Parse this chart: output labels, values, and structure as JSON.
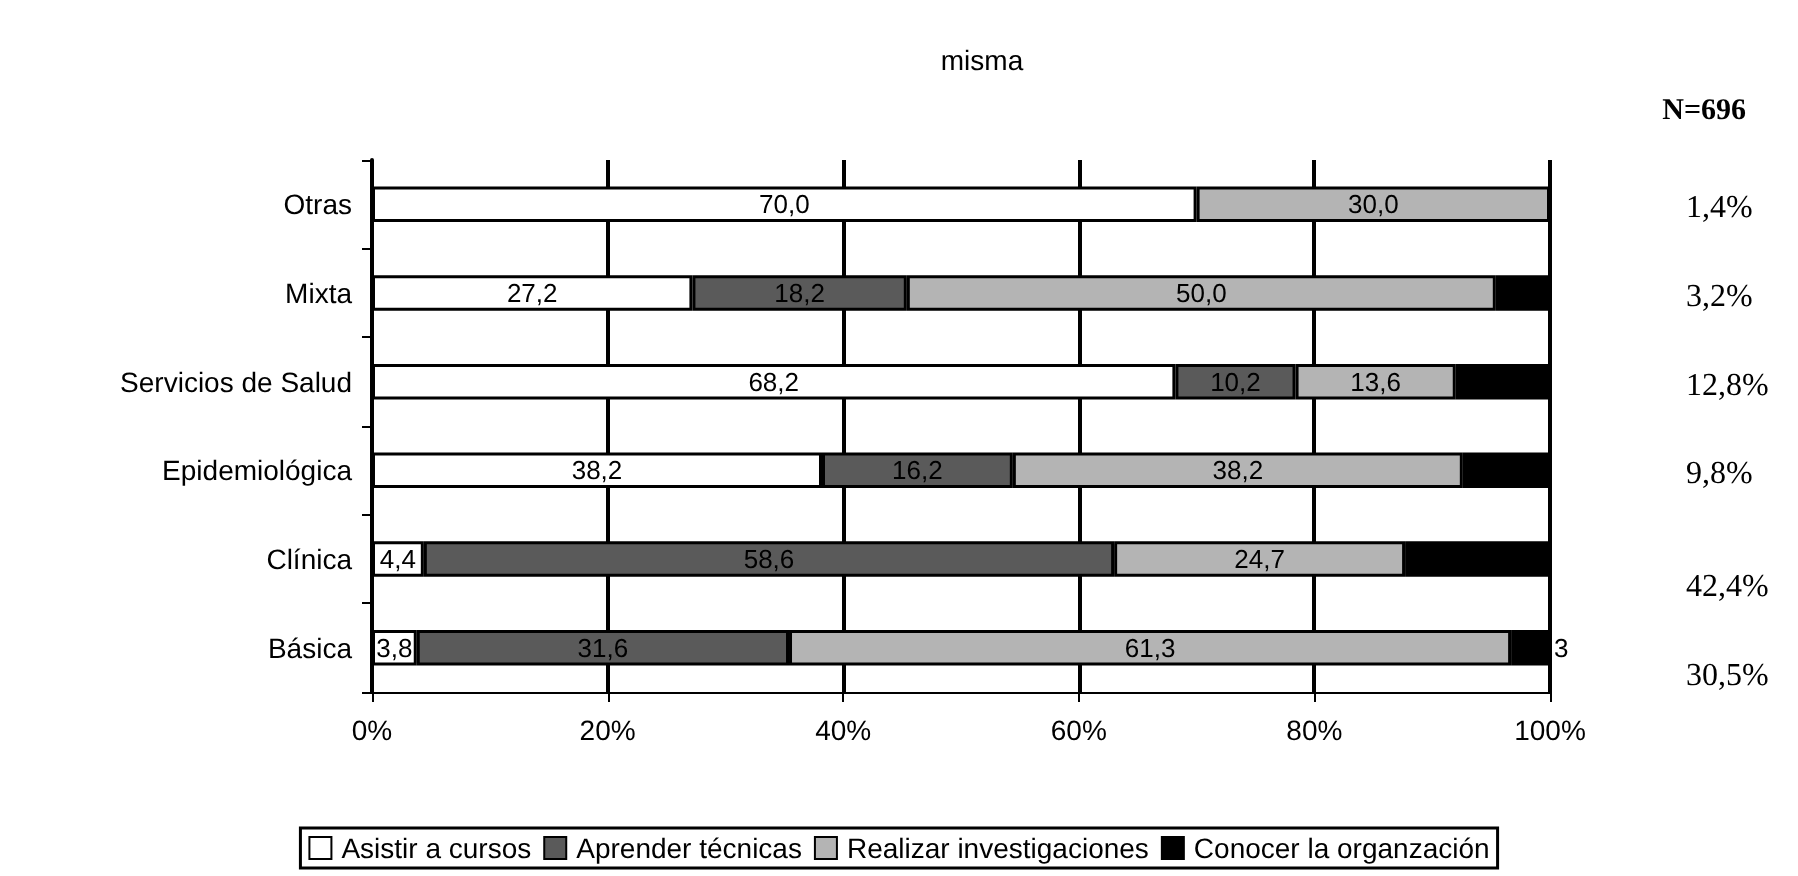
{
  "chart_data": {
    "type": "bar",
    "title": "misma",
    "orientation": "horizontal",
    "stacked": true,
    "categories": [
      "Otras",
      "Mixta",
      "Servicios de Salud",
      "Epidemiológica",
      "Clínica",
      "Básica"
    ],
    "series": [
      {
        "name": "Asistir a cursos",
        "color": "#ffffff",
        "values": [
          70.0,
          27.2,
          68.2,
          38.2,
          4.4,
          3.8
        ],
        "value_labels": [
          "70,0",
          "27,2",
          "68,2",
          "38,2",
          "4,4",
          "3,8"
        ]
      },
      {
        "name": "Aprender técnicas",
        "color": "#5a5a5a",
        "values": [
          null,
          18.2,
          10.2,
          16.2,
          58.6,
          31.6
        ],
        "value_labels": [
          null,
          "18,2",
          "10,2",
          "16,2",
          "58,6",
          "31,6"
        ]
      },
      {
        "name": "Realizar investigaciones",
        "color": "#b4b4b4",
        "values": [
          30.0,
          50.0,
          13.6,
          38.2,
          24.7,
          61.3
        ],
        "value_labels": [
          "30,0",
          "50,0",
          "13,6",
          "38,2",
          "24,7",
          "61,3"
        ]
      },
      {
        "name": "Conocer la organzación",
        "color": "#000000",
        "values": [
          null,
          4.6,
          8.0,
          7.4,
          12.3,
          3.3
        ],
        "value_labels": [
          null,
          null,
          null,
          null,
          null,
          "3"
        ]
      }
    ],
    "xlim": [
      0,
      100
    ],
    "xticks": [
      {
        "value": 0,
        "label": "0%"
      },
      {
        "value": 20,
        "label": "20%"
      },
      {
        "value": 40,
        "label": "40%"
      },
      {
        "value": 60,
        "label": "60%"
      },
      {
        "value": 80,
        "label": "80%"
      },
      {
        "value": 100,
        "label": "100%"
      }
    ],
    "grid": "x",
    "legend": "bottom",
    "annotations": [
      "N=696",
      "1,4%",
      "3,2%",
      "12,8%",
      "9,8%",
      "42,4%",
      "30,5%"
    ]
  }
}
